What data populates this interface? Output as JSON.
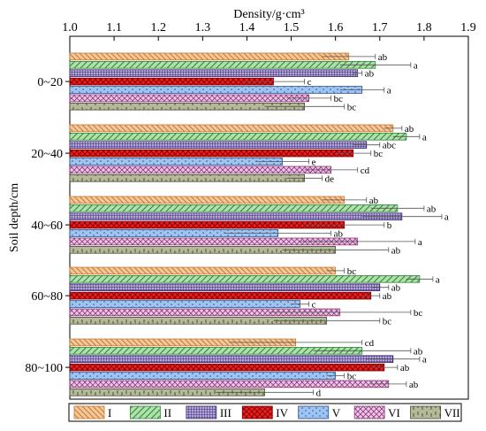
{
  "chart_data": {
    "type": "bar",
    "orientation": "horizontal",
    "xlabel": "Density/g·cm³",
    "ylabel": "Soil depth/cm",
    "xlim": [
      1.0,
      1.9
    ],
    "xticks": [
      "1.0",
      "1.1",
      "1.2",
      "1.3",
      "1.4",
      "1.5",
      "1.6",
      "1.7",
      "1.8",
      "1.9"
    ],
    "axis_position": "top",
    "grid": false,
    "legend_position": "bottom",
    "categories": [
      "0~20",
      "20~40",
      "40~60",
      "60~80",
      "80~100"
    ],
    "series": [
      {
        "name": "I",
        "values": [
          1.63,
          1.73,
          1.62,
          1.6,
          1.51
        ],
        "errors": [
          0.06,
          0.02,
          0.05,
          0.02,
          0.15
        ],
        "letters": [
          "ab",
          "ab",
          "ab",
          "bc",
          "cd"
        ]
      },
      {
        "name": "II",
        "values": [
          1.69,
          1.76,
          1.74,
          1.79,
          1.66
        ],
        "errors": [
          0.08,
          0.03,
          0.06,
          0.03,
          0.11
        ],
        "letters": [
          "a",
          "a",
          "ab",
          "a",
          "ab"
        ]
      },
      {
        "name": "III",
        "values": [
          1.65,
          1.67,
          1.75,
          1.7,
          1.73
        ],
        "errors": [
          0.01,
          0.03,
          0.09,
          0.02,
          0.06
        ],
        "letters": [
          "ab",
          "abc",
          "a",
          "ab",
          "a"
        ]
      },
      {
        "name": "IV",
        "values": [
          1.46,
          1.64,
          1.62,
          1.68,
          1.71
        ],
        "errors": [
          0.07,
          0.04,
          0.09,
          0.02,
          0.03
        ],
        "letters": [
          "c",
          "bc",
          "b",
          "ab",
          "ab"
        ]
      },
      {
        "name": "V",
        "values": [
          1.66,
          1.48,
          1.47,
          1.52,
          1.6
        ],
        "errors": [
          0.05,
          0.06,
          0.12,
          0.02,
          0.02
        ],
        "letters": [
          "a",
          "e",
          "ab",
          "c",
          "bc"
        ]
      },
      {
        "name": "VI",
        "values": [
          1.54,
          1.59,
          1.65,
          1.61,
          1.72
        ],
        "errors": [
          0.05,
          0.06,
          0.13,
          0.16,
          0.04
        ],
        "letters": [
          "bc",
          "cd",
          "a",
          "bc",
          "ab"
        ]
      },
      {
        "name": "VII",
        "values": [
          1.53,
          1.53,
          1.6,
          1.58,
          1.44
        ],
        "errors": [
          0.09,
          0.04,
          0.12,
          0.12,
          0.11
        ],
        "letters": [
          "bc",
          "de",
          "ab",
          "bc",
          "d"
        ]
      }
    ],
    "colors": {
      "I": {
        "fill": "#f3c89c",
        "line": "#c9782e",
        "pattern": "diag-back"
      },
      "II": {
        "fill": "#b2dfae",
        "line": "#2f8a36",
        "pattern": "diag-fwd"
      },
      "III": {
        "fill": "#b5a7d8",
        "line": "#3c2b73",
        "pattern": "grid"
      },
      "IV": {
        "fill": "#ee1c1c",
        "line": "#7a0000",
        "pattern": "crosshatch"
      },
      "V": {
        "fill": "#9ec4f2",
        "line": "#2a4f8c",
        "pattern": "dots"
      },
      "VI": {
        "fill": "#efc6e6",
        "line": "#8a3b7d",
        "pattern": "crosshatch-light"
      },
      "VII": {
        "fill": "#b5b99a",
        "line": "#4a4d33",
        "pattern": "vertical-dash"
      }
    }
  }
}
